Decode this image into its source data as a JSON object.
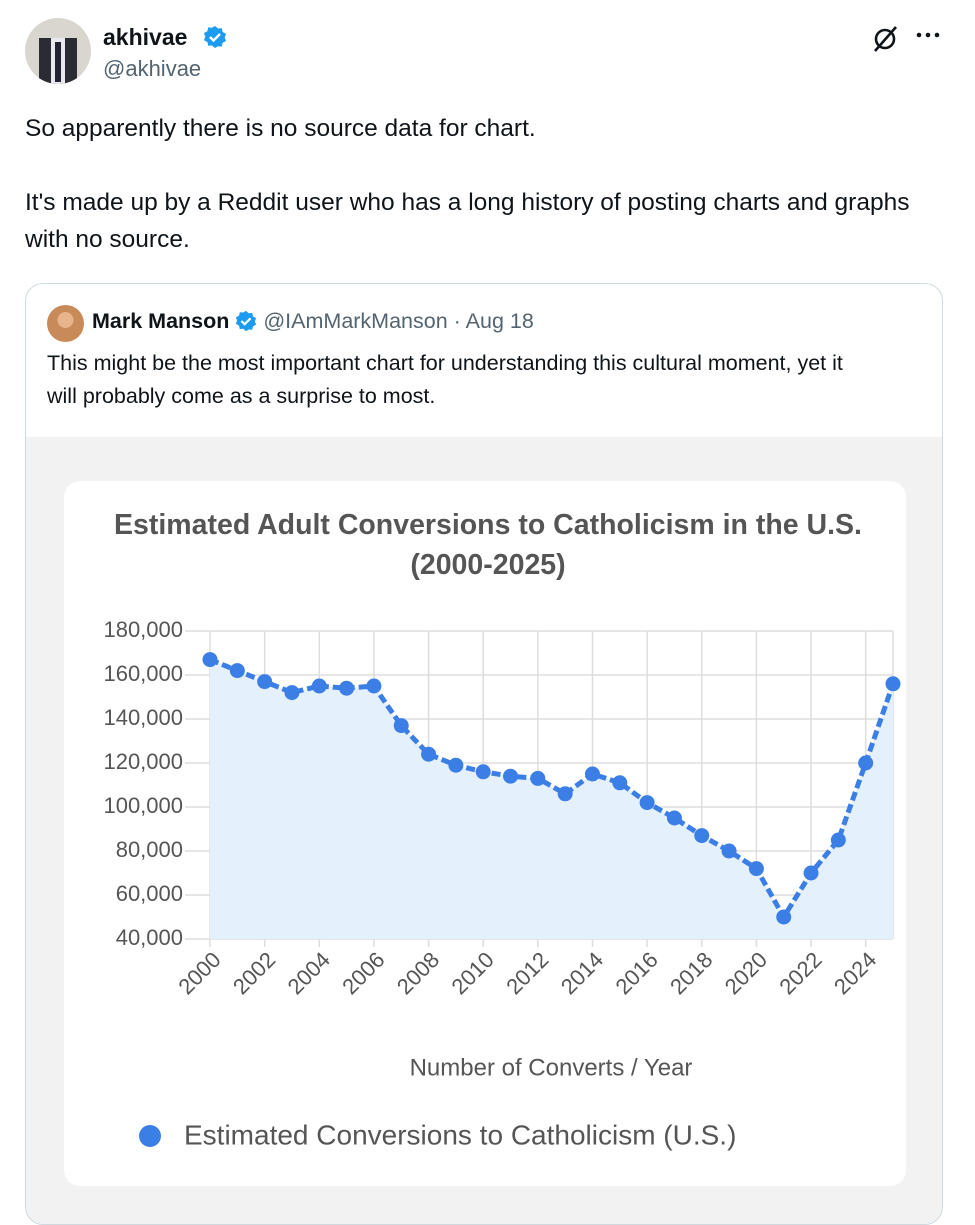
{
  "tweet": {
    "author": {
      "name": "akhivae",
      "handle": "@akhivae"
    },
    "text": [
      "So apparently there is no source data for chart.",
      "It's made up by a Reddit user who has a long history of posting charts and graphs with no source."
    ]
  },
  "quoted_tweet": {
    "author": {
      "name": "Mark Manson",
      "handle": "@IAmMarkManson"
    },
    "separator": "·",
    "date": "Aug 18",
    "text": "This might be the most important chart for understanding this cultural moment, yet it will probably come as a surprise to most."
  },
  "chart_data": {
    "type": "line",
    "title": "Estimated Adult Conversions to Catholicism in the U.S. (2000-2025)",
    "x_label": "Number of Converts / Year",
    "x": [
      2000,
      2001,
      2002,
      2003,
      2004,
      2005,
      2006,
      2007,
      2008,
      2009,
      2010,
      2011,
      2012,
      2013,
      2014,
      2015,
      2016,
      2017,
      2018,
      2019,
      2020,
      2021,
      2022,
      2023,
      2024,
      2025
    ],
    "series": [
      {
        "name": "Estimated Conversions to Catholicism (U.S.)",
        "color": "#3b7fe6",
        "values": [
          167000,
          162000,
          157000,
          152000,
          155000,
          154000,
          155000,
          137000,
          124000,
          119000,
          116000,
          114000,
          113000,
          106000,
          115000,
          111000,
          102000,
          95000,
          87000,
          80000,
          72000,
          50000,
          70000,
          85000,
          120000,
          156000
        ]
      }
    ],
    "xlim": [
      2000,
      2025
    ],
    "xticks": [
      2000,
      2002,
      2004,
      2006,
      2008,
      2010,
      2012,
      2014,
      2016,
      2018,
      2020,
      2022,
      2024
    ],
    "ylim": [
      40000,
      180000
    ],
    "yticks": [
      {
        "value": 40000,
        "label": "40,000"
      },
      {
        "value": 60000,
        "label": "60,000"
      },
      {
        "value": 80000,
        "label": "80,000"
      },
      {
        "value": 100000,
        "label": "100,000"
      },
      {
        "value": 120000,
        "label": "120,000"
      },
      {
        "value": 140000,
        "label": "140,000"
      },
      {
        "value": 160000,
        "label": "160,000"
      },
      {
        "value": 180000,
        "label": "180,000"
      }
    ],
    "grid": true,
    "fill": "#e4f0fc",
    "legend": "bottom"
  }
}
